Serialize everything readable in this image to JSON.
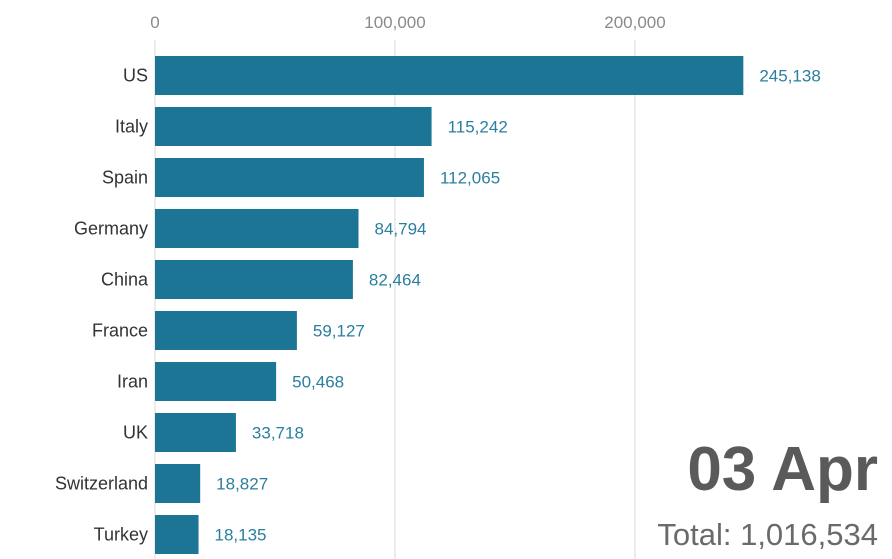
{
  "chart_data": {
    "type": "bar",
    "orientation": "horizontal",
    "categories": [
      "US",
      "Italy",
      "Spain",
      "Germany",
      "China",
      "France",
      "Iran",
      "UK",
      "Switzerland",
      "Turkey"
    ],
    "values": [
      245138,
      115242,
      112065,
      84794,
      82464,
      59127,
      50468,
      33718,
      18827,
      18135
    ],
    "value_labels": [
      "245,138",
      "115,242",
      "112,065",
      "84,794",
      "82,464",
      "59,127",
      "50,468",
      "33,718",
      "18,827",
      "18,135"
    ],
    "x_ticks": [
      0,
      100000,
      200000
    ],
    "x_tick_labels": [
      "0",
      "100,000",
      "200,000"
    ],
    "xlim": [
      0,
      290000
    ],
    "axis_position": "top",
    "grid": true,
    "date_label": "03 Apr",
    "total_label": "Total: 1,016,534",
    "colors": {
      "bar": "#1d7596",
      "value_text": "#2a7f9e",
      "grid": "#e6e6e6"
    }
  }
}
